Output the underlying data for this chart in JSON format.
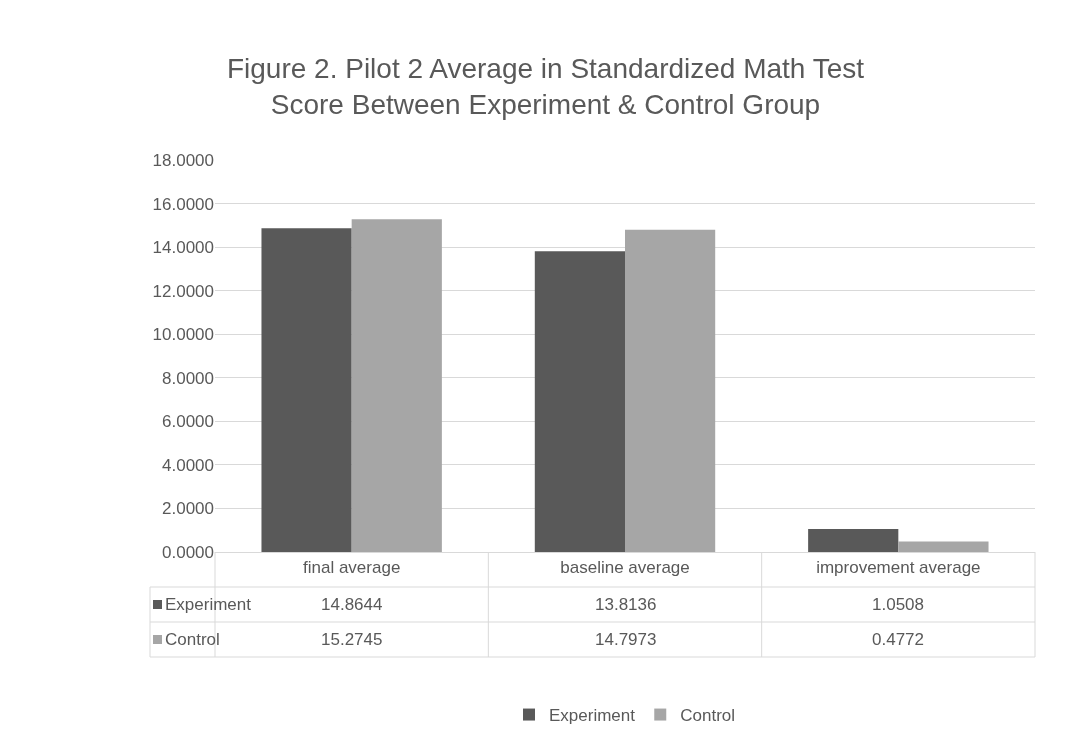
{
  "chart_data": {
    "type": "bar",
    "title": "Figure 2. Pilot 2 Average in Standardized Math Test\nScore Between Experiment & Control Group",
    "categories": [
      "final average",
      "baseline average",
      "improvement average"
    ],
    "series": [
      {
        "name": "Experiment",
        "color": "#595959",
        "values": [
          14.8644,
          13.8136,
          1.0508
        ]
      },
      {
        "name": "Control",
        "color": "#a6a6a6",
        "values": [
          15.2745,
          14.7973,
          0.4772
        ]
      }
    ],
    "ylim": [
      0,
      18
    ],
    "yticks": [
      {
        "value": 0,
        "label": "0.0000"
      },
      {
        "value": 2,
        "label": "2.0000"
      },
      {
        "value": 4,
        "label": "4.0000"
      },
      {
        "value": 6,
        "label": "6.0000"
      },
      {
        "value": 8,
        "label": "8.0000"
      },
      {
        "value": 10,
        "label": "10.0000"
      },
      {
        "value": 12,
        "label": "12.0000"
      },
      {
        "value": 14,
        "label": "14.0000"
      },
      {
        "value": 16,
        "label": "16.0000"
      },
      {
        "value": 18,
        "label": "18.0000"
      }
    ],
    "grid": "y",
    "legend": "bottom",
    "data_labels": true
  }
}
